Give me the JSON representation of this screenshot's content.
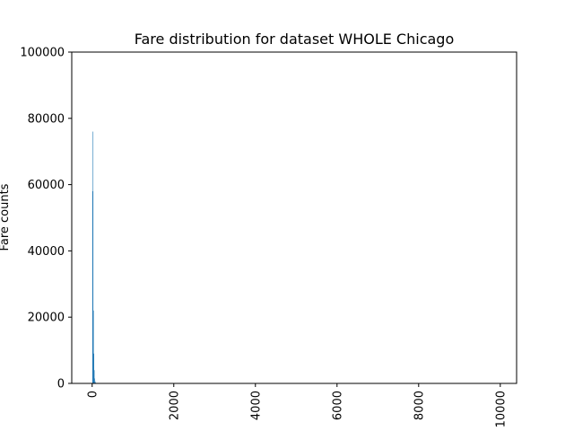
{
  "chart_data": {
    "type": "bar",
    "title": "Fare distribution for dataset WHOLE Chicago",
    "xlabel": "",
    "ylabel": "Fare counts",
    "xlim": [
      -500,
      10400
    ],
    "ylim": [
      0,
      100000
    ],
    "xticks": [
      0,
      2000,
      4000,
      6000,
      8000,
      10000
    ],
    "yticks": [
      0,
      20000,
      40000,
      60000,
      80000,
      100000
    ],
    "bar_color": "#1f77b4",
    "grid": false,
    "bins": [
      {
        "x": 10,
        "y": 58000
      },
      {
        "x": 20,
        "y": 76000
      },
      {
        "x": 30,
        "y": 22000
      },
      {
        "x": 40,
        "y": 9000
      },
      {
        "x": 50,
        "y": 4000
      },
      {
        "x": 60,
        "y": 1500
      },
      {
        "x": 70,
        "y": 700
      },
      {
        "x": 80,
        "y": 300
      },
      {
        "x": 90,
        "y": 150
      }
    ]
  }
}
